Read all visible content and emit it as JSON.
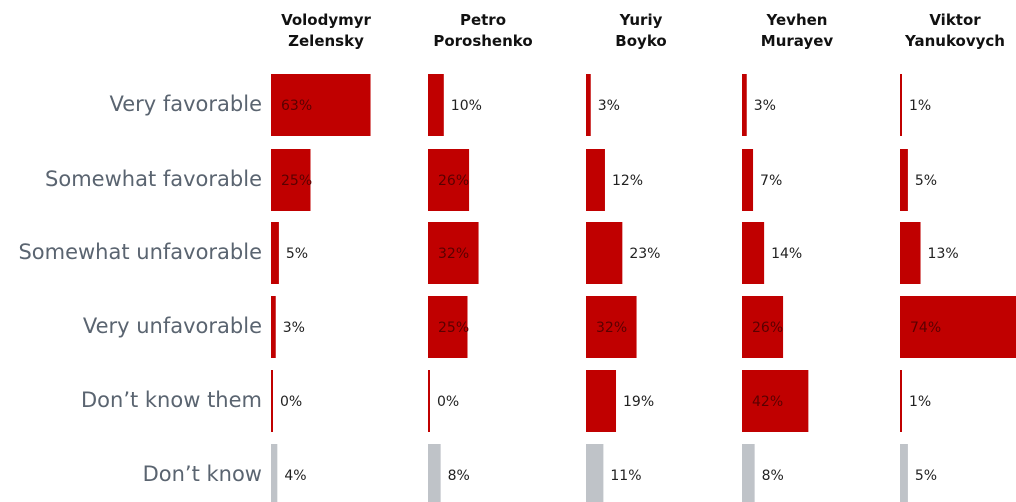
{
  "chart_data": {
    "type": "bar",
    "categories": [
      "Very favorable",
      "Somewhat favorable",
      "Somewhat unfavorable",
      "Very unfavorable",
      "Don’t know them",
      "Don’t know"
    ],
    "colors": [
      "#c00000",
      "#c00000",
      "#c00000",
      "#c00000",
      "#c00000",
      "#bfc3c8"
    ],
    "xlim": [
      0,
      100
    ],
    "series": [
      {
        "name": "Volodymyr Zelensky",
        "values": [
          63,
          25,
          5,
          3,
          0,
          4
        ],
        "value_labels": [
          "63%",
          "25%",
          "5%",
          "3%",
          "0%",
          "4%"
        ]
      },
      {
        "name": "Petro Poroshenko",
        "values": [
          10,
          26,
          32,
          25,
          0,
          8
        ],
        "value_labels": [
          "10%",
          "26%",
          "32%",
          "25%",
          "0%",
          "8%"
        ]
      },
      {
        "name": "Yuriy Boyko",
        "values": [
          3,
          12,
          23,
          32,
          19,
          11
        ],
        "value_labels": [
          "3%",
          "12%",
          "23%",
          "32%",
          "19%",
          "11%"
        ]
      },
      {
        "name": "Yevhen Murayev",
        "values": [
          3,
          7,
          14,
          26,
          42,
          8
        ],
        "value_labels": [
          "3%",
          "7%",
          "14%",
          "26%",
          "42%",
          "8%"
        ]
      },
      {
        "name": "Viktor Yanukovych",
        "values": [
          1,
          5,
          13,
          74,
          1,
          5
        ],
        "value_labels": [
          "1%",
          "5%",
          "13%",
          "74%",
          "1%",
          "5%"
        ]
      }
    ]
  }
}
